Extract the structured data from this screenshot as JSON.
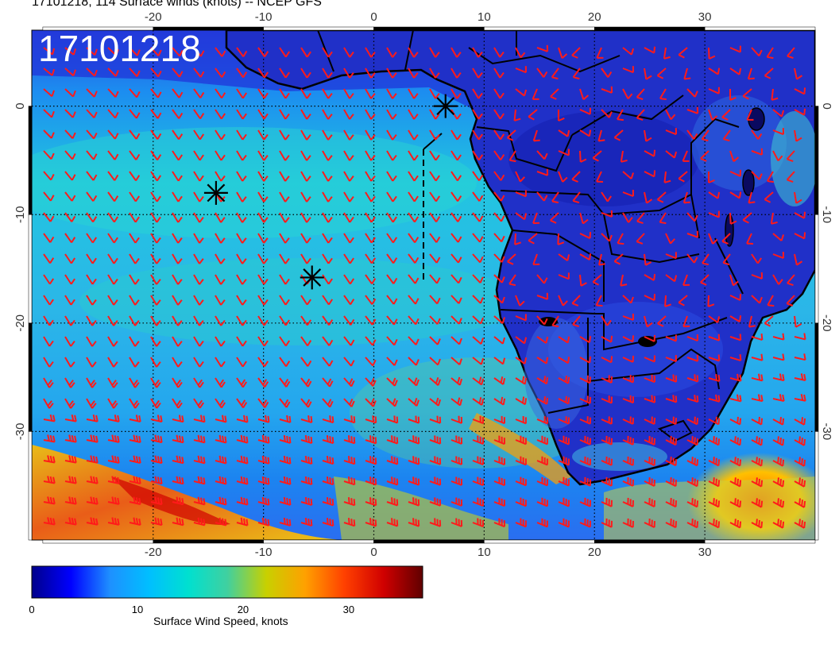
{
  "header": {
    "title": "17101218, 114 Surface winds (knots) -- NCEP GFS",
    "run_label": "17101218"
  },
  "map": {
    "region": "South Atlantic and Southern Africa",
    "projection": "lat-lon",
    "lon_range": [
      -31,
      40
    ],
    "lat_range": [
      -40,
      7
    ],
    "lon_ticks": [
      "-20",
      "-10",
      "0",
      "10",
      "20",
      "30"
    ],
    "lat_ticks": [
      "0",
      "-10",
      "-20",
      "-30"
    ],
    "storm_markers": [
      {
        "lon": 6.5,
        "lat": 0.0
      },
      {
        "lon": -14.3,
        "lat": -8.0
      },
      {
        "lon": -5.6,
        "lat": -15.8
      }
    ],
    "colors": {
      "wind_barb": "#ff1a1a",
      "coastline": "#000000"
    }
  },
  "colorbar": {
    "title": "Surface Wind Speed, knots",
    "ticks": [
      "0",
      "10",
      "20",
      "30"
    ],
    "range": [
      0,
      37
    ],
    "stops": [
      "#00008b",
      "#0000ff",
      "#1e90ff",
      "#00bfff",
      "#00e0d0",
      "#40d0a0",
      "#c8d000",
      "#ffa000",
      "#ff4000",
      "#d00000",
      "#600000"
    ]
  }
}
